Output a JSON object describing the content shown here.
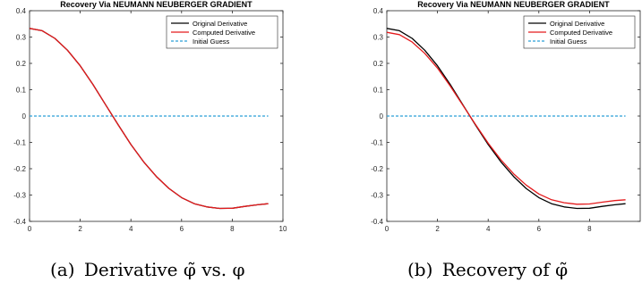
{
  "chart_data": [
    {
      "type": "line",
      "title": "Recovery Via NEUMANN NEUBERGER GRADIENT",
      "xlabel": "",
      "ylabel": "",
      "xlim": [
        0,
        10
      ],
      "ylim": [
        -0.4,
        0.4
      ],
      "xticks": [
        0,
        2,
        4,
        6,
        8,
        10
      ],
      "xtick_labels": [
        "0",
        "2",
        "4",
        "6",
        "8",
        "10"
      ],
      "yticks": [
        -0.4,
        -0.3,
        -0.2,
        -0.1,
        0,
        0.1,
        0.2,
        0.3,
        0.4
      ],
      "ytick_labels": [
        "-0.4",
        "-0.3",
        "-0.2",
        "-0.1",
        "0",
        "0.1",
        "0.2",
        "0.3",
        "0.4"
      ],
      "grid": false,
      "legend_position": "top-right",
      "series": [
        {
          "name": "Original Derivative",
          "color": "#000000",
          "dash": "solid",
          "x": [
            0,
            0.5,
            1,
            1.5,
            2,
            2.5,
            3,
            3.5,
            4,
            4.5,
            5,
            5.5,
            6,
            6.5,
            7,
            7.5,
            8,
            8.5,
            9,
            9.42
          ],
          "y": [
            0.333,
            0.324,
            0.295,
            0.25,
            0.191,
            0.12,
            0.043,
            -0.034,
            -0.108,
            -0.174,
            -0.229,
            -0.275,
            -0.31,
            -0.333,
            -0.345,
            -0.351,
            -0.35,
            -0.343,
            -0.337,
            -0.333
          ]
        },
        {
          "name": "Computed Derivative",
          "color": "#e41a1c",
          "dash": "solid",
          "x": [
            0,
            0.5,
            1,
            1.5,
            2,
            2.5,
            3,
            3.5,
            4,
            4.5,
            5,
            5.5,
            6,
            6.5,
            7,
            7.5,
            8,
            8.5,
            9,
            9.42
          ],
          "y": [
            0.333,
            0.324,
            0.295,
            0.25,
            0.191,
            0.12,
            0.043,
            -0.034,
            -0.108,
            -0.174,
            -0.229,
            -0.275,
            -0.31,
            -0.333,
            -0.345,
            -0.351,
            -0.35,
            -0.343,
            -0.337,
            -0.333
          ]
        },
        {
          "name": "Initial Guess",
          "color": "#2b9fd6",
          "dash": "dashed",
          "x": [
            0,
            9.42
          ],
          "y": [
            0,
            0
          ]
        }
      ],
      "caption": {
        "tag": "(a)",
        "text": "Derivative φ̃ vs. φ"
      }
    },
    {
      "type": "line",
      "title": "Recovery Via NEUMANN NEUBERGER GRADIENT",
      "xlabel": "",
      "ylabel": "",
      "xlim": [
        0,
        10
      ],
      "ylim": [
        -0.4,
        0.4
      ],
      "xticks": [
        0,
        2,
        4,
        6,
        8
      ],
      "xtick_labels": [
        "0",
        "2",
        "4",
        "6",
        "8"
      ],
      "yticks": [
        -0.4,
        -0.3,
        -0.2,
        -0.1,
        0,
        0.1,
        0.2,
        0.3,
        0.4
      ],
      "ytick_labels": [
        "-0.4",
        "-0.3",
        "-0.2",
        "-0.1",
        "0",
        "0.1",
        "0.2",
        "0.3",
        "0.4"
      ],
      "grid": false,
      "legend_position": "top-right",
      "series": [
        {
          "name": "Original Derivative",
          "color": "#000000",
          "dash": "solid",
          "x": [
            0,
            0.5,
            1,
            1.5,
            2,
            2.5,
            3,
            3.5,
            4,
            4.5,
            5,
            5.5,
            6,
            6.5,
            7,
            7.5,
            8,
            8.5,
            9,
            9.42
          ],
          "y": [
            0.333,
            0.324,
            0.295,
            0.25,
            0.191,
            0.12,
            0.043,
            -0.034,
            -0.108,
            -0.174,
            -0.229,
            -0.275,
            -0.31,
            -0.333,
            -0.345,
            -0.351,
            -0.35,
            -0.343,
            -0.337,
            -0.333
          ]
        },
        {
          "name": "Computed Derivative",
          "color": "#e41a1c",
          "dash": "solid",
          "x": [
            0,
            0.5,
            1,
            1.5,
            2,
            2.5,
            3,
            3.5,
            4,
            4.5,
            5,
            5.5,
            6,
            6.5,
            7,
            7.5,
            8,
            8.5,
            9,
            9.42
          ],
          "y": [
            0.318,
            0.309,
            0.281,
            0.238,
            0.182,
            0.114,
            0.041,
            -0.032,
            -0.103,
            -0.166,
            -0.219,
            -0.262,
            -0.296,
            -0.318,
            -0.329,
            -0.335,
            -0.334,
            -0.327,
            -0.321,
            -0.318
          ]
        },
        {
          "name": "Initial Guess",
          "color": "#2b9fd6",
          "dash": "dashed",
          "x": [
            0,
            9.42
          ],
          "y": [
            0,
            0
          ]
        }
      ],
      "caption": {
        "tag": "(b)",
        "text": "Recovery of φ̃"
      }
    }
  ]
}
